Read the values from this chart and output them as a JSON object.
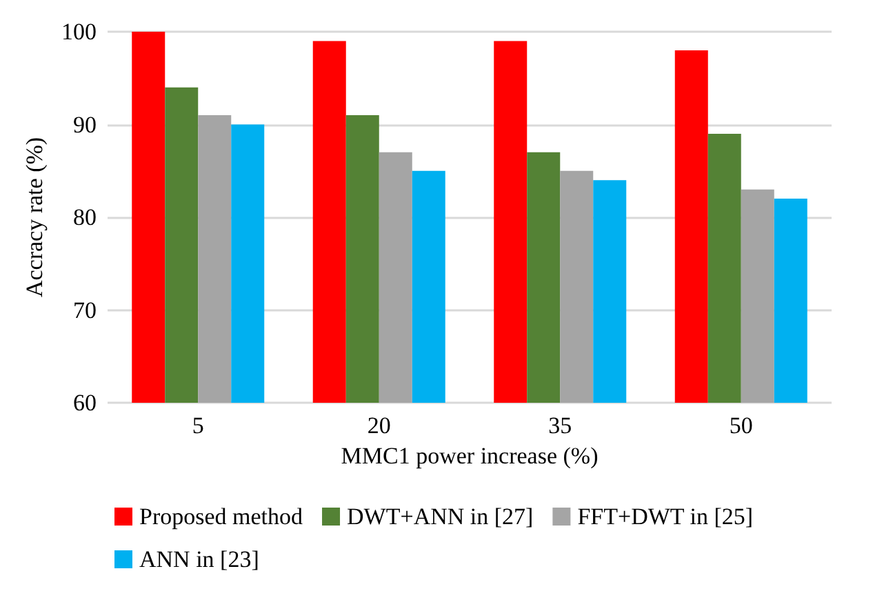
{
  "chart_data": {
    "type": "bar",
    "xlabel": "MMC1 power increase (%)",
    "ylabel": "Accracy rate (%)",
    "categories": [
      "5",
      "20",
      "35",
      "50"
    ],
    "series": [
      {
        "name": "Proposed method",
        "color": "#ff0000",
        "values": [
          100,
          99,
          99,
          98
        ]
      },
      {
        "name": "DWT+ANN in [27]",
        "color": "#548235",
        "values": [
          94,
          91,
          87,
          89
        ]
      },
      {
        "name": "FFT+DWT in [25]",
        "color": "#a5a5a5",
        "values": [
          91,
          87,
          85,
          83
        ]
      },
      {
        "name": "ANN in [23]",
        "color": "#00b0f0",
        "values": [
          90,
          85,
          84,
          82
        ]
      }
    ],
    "ylim": [
      60,
      100
    ],
    "yticks": [
      60,
      70,
      80,
      90,
      100
    ],
    "grid": "y",
    "legend": "bottom"
  }
}
